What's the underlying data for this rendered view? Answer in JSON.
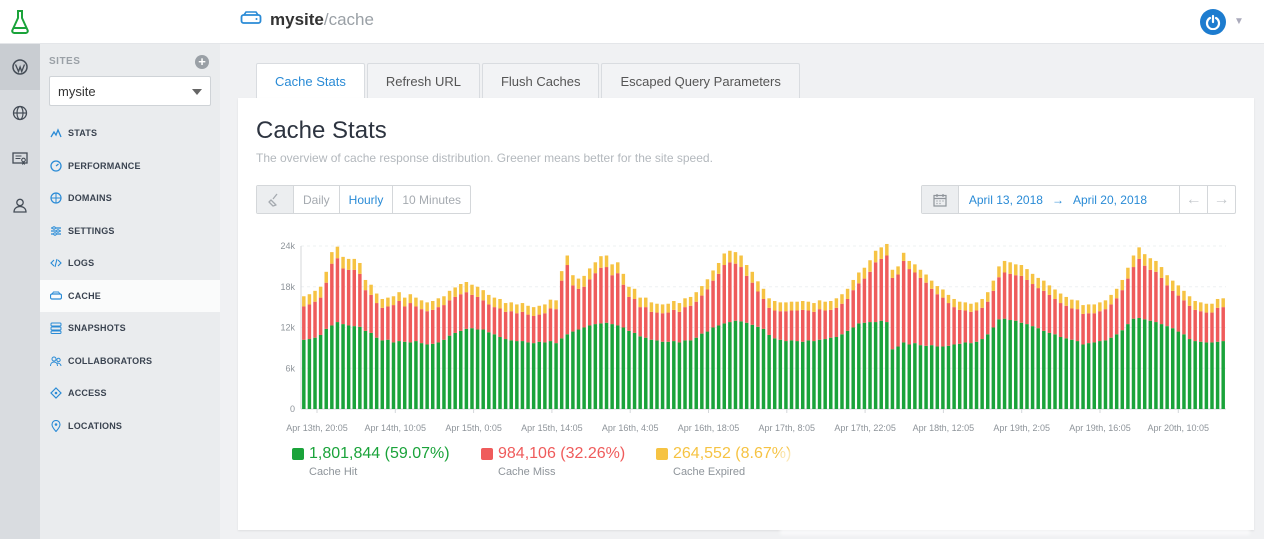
{
  "app": {
    "logo_icon": "flask-icon",
    "site_name": "mysite",
    "site_path": "/cache",
    "site_icon": "drive-icon",
    "power_icon": "power-icon"
  },
  "rail": [
    {
      "icon": "wordpress-icon"
    },
    {
      "icon": "globe-icon"
    },
    {
      "icon": "certificate-icon"
    },
    {
      "icon": "user-icon"
    }
  ],
  "sidebar": {
    "sites_label": "SITES",
    "add_label": "+",
    "selected_site": "mysite",
    "items": [
      {
        "label": "STATS",
        "icon": "stats-icon"
      },
      {
        "label": "PERFORMANCE",
        "icon": "gauge-icon"
      },
      {
        "label": "DOMAINS",
        "icon": "globe-icon"
      },
      {
        "label": "SETTINGS",
        "icon": "settings-icon"
      },
      {
        "label": "LOGS",
        "icon": "code-icon"
      },
      {
        "label": "CACHE",
        "icon": "drive-icon",
        "active": true
      },
      {
        "label": "SNAPSHOTS",
        "icon": "database-icon"
      },
      {
        "label": "COLLABORATORS",
        "icon": "users-icon"
      },
      {
        "label": "ACCESS",
        "icon": "key-icon"
      },
      {
        "label": "LOCATIONS",
        "icon": "pin-icon"
      }
    ]
  },
  "tabs": [
    {
      "label": "Cache Stats",
      "active": true
    },
    {
      "label": "Refresh URL"
    },
    {
      "label": "Flush Caches"
    },
    {
      "label": "Escaped Query Parameters"
    }
  ],
  "card": {
    "title": "Cache Stats",
    "subtitle": "The overview of cache response distribution. Greener means better for the site speed."
  },
  "granularity": {
    "icon": "broom-icon",
    "options": [
      "Daily",
      "Hourly",
      "10 Minutes"
    ],
    "active": "Hourly"
  },
  "date_range": {
    "icon": "calendar-icon",
    "start": "April 13, 2018",
    "arrow": "→",
    "end": "April 20, 2018",
    "prev": "←",
    "next": "→"
  },
  "legend": [
    {
      "value": "1,801,844 (59.07%)",
      "label": "Cache Hit",
      "color": "#1aa33a"
    },
    {
      "value": "984,106 (32.26%)",
      "label": "Cache Miss",
      "color": "#ef5b5b"
    },
    {
      "value": "264,552 (8.67%)",
      "label": "Cache Expired",
      "color": "#f6c343"
    }
  ],
  "chart_data": {
    "type": "bar",
    "stacked": true,
    "ylim": [
      0,
      24000
    ],
    "ytick_labels": [
      "0",
      "6k",
      "12k",
      "18k",
      "24k"
    ],
    "yticks": [
      0,
      6000,
      12000,
      18000,
      24000
    ],
    "xtick_labels": [
      "Apr 13th, 20:05",
      "Apr 14th, 10:05",
      "Apr 15th, 0:05",
      "Apr 15th, 14:05",
      "Apr 16th, 4:05",
      "Apr 16th, 18:05",
      "Apr 17th, 8:05",
      "Apr 17th, 22:05",
      "Apr 18th, 12:05",
      "Apr 19th, 2:05",
      "Apr 19th, 16:05",
      "Apr 20th, 10:05"
    ],
    "grid": true,
    "series": [
      {
        "name": "Cache Hit",
        "color": "#1aa33a",
        "values": [
          10200,
          10300,
          10500,
          10900,
          11800,
          12300,
          12800,
          12500,
          12300,
          12200,
          12100,
          11500,
          11200,
          10500,
          10100,
          10200,
          9800,
          10000,
          9900,
          9800,
          10000,
          9700,
          9500,
          9600,
          9800,
          10200,
          10800,
          11200,
          11500,
          11800,
          11900,
          11700,
          11700,
          11300,
          11000,
          10600,
          10300,
          10100,
          10000,
          10000,
          9800,
          9700,
          9900,
          9800,
          10000,
          9700,
          10400,
          11000,
          11400,
          11700,
          12000,
          12300,
          12500,
          12600,
          12700,
          12500,
          12300,
          12000,
          11500,
          11200,
          10700,
          10500,
          10200,
          10100,
          9900,
          9900,
          10000,
          9800,
          10100,
          10100,
          10500,
          11100,
          11400,
          12000,
          12300,
          12600,
          12800,
          13000,
          12900,
          12700,
          12400,
          12100,
          11800,
          10900,
          10400,
          10200,
          10000,
          10100,
          10000,
          9900,
          10100,
          10000,
          10200,
          10300,
          10500,
          10600,
          11000,
          11500,
          12000,
          12600,
          12700,
          12800,
          12800,
          13000,
          12800,
          8800,
          9200,
          9800,
          9500,
          9700,
          9400,
          9300,
          9400,
          9200,
          9200,
          9300,
          9500,
          9600,
          9800,
          9700,
          9900,
          10300,
          11000,
          12000,
          13200,
          13300,
          13100,
          13000,
          12700,
          12500,
          12200,
          11900,
          11500,
          11200,
          11000,
          10600,
          10400,
          10200,
          10000,
          9500,
          9700,
          9800,
          10000,
          10100,
          10500,
          11000,
          11600,
          12500,
          13300,
          13400,
          13200,
          13000,
          12800,
          12500,
          12200,
          11900,
          11400,
          11000,
          10300,
          10000,
          9900,
          9800,
          9800,
          9900,
          10000
        ]
      },
      {
        "name": "Cache Miss",
        "color": "#ef5b5b",
        "values": [
          4900,
          5100,
          5300,
          5500,
          6800,
          9100,
          9400,
          8200,
          8200,
          8300,
          7800,
          6000,
          5600,
          5100,
          4800,
          4900,
          5500,
          5900,
          5200,
          5800,
          5100,
          5000,
          4900,
          5000,
          5200,
          5100,
          5200,
          5300,
          5400,
          5400,
          4900,
          4800,
          4300,
          4100,
          4000,
          4200,
          4000,
          4300,
          4100,
          4300,
          4100,
          4000,
          4000,
          4300,
          4800,
          5000,
          8500,
          10200,
          6800,
          6000,
          6000,
          6800,
          7500,
          8200,
          8200,
          7200,
          7700,
          6300,
          5000,
          5000,
          4300,
          4500,
          4100,
          4100,
          4200,
          4300,
          4600,
          4500,
          4900,
          5100,
          5300,
          5600,
          6200,
          6900,
          7600,
          8600,
          8800,
          8400,
          8000,
          6900,
          6200,
          5200,
          4400,
          4000,
          4100,
          4200,
          4400,
          4400,
          4500,
          4700,
          4400,
          4300,
          4500,
          4200,
          4100,
          4300,
          4500,
          4700,
          5500,
          5900,
          6500,
          7400,
          8800,
          9100,
          9800,
          10500,
          10600,
          12000,
          11100,
          10400,
          9900,
          9300,
          8300,
          7700,
          7200,
          6300,
          5500,
          5000,
          4700,
          4600,
          4600,
          4600,
          4800,
          5400,
          6200,
          6800,
          6800,
          6700,
          6900,
          6500,
          6200,
          5900,
          5900,
          5600,
          5200,
          5000,
          4800,
          4600,
          4700,
          4500,
          4400,
          4300,
          4400,
          4600,
          4900,
          5300,
          5900,
          6700,
          7600,
          8700,
          7900,
          7500,
          7400,
          6800,
          6000,
          5500,
          5300,
          5000,
          4900,
          4600,
          4500,
          4400,
          4400,
          5000,
          5000
        ]
      },
      {
        "name": "Cache Expired",
        "color": "#f6c343",
        "values": [
          1500,
          1500,
          1600,
          1600,
          1600,
          1700,
          1700,
          1700,
          1600,
          1600,
          1600,
          1500,
          1500,
          1400,
          1300,
          1300,
          1300,
          1300,
          1300,
          1300,
          1300,
          1300,
          1300,
          1300,
          1300,
          1300,
          1400,
          1400,
          1500,
          1500,
          1500,
          1500,
          1500,
          1400,
          1400,
          1400,
          1300,
          1300,
          1300,
          1300,
          1300,
          1300,
          1300,
          1300,
          1300,
          1300,
          1400,
          1400,
          1500,
          1500,
          1600,
          1600,
          1600,
          1700,
          1700,
          1600,
          1600,
          1600,
          1500,
          1500,
          1400,
          1400,
          1400,
          1300,
          1300,
          1300,
          1300,
          1300,
          1300,
          1300,
          1400,
          1400,
          1500,
          1500,
          1600,
          1700,
          1700,
          1700,
          1700,
          1600,
          1600,
          1500,
          1500,
          1400,
          1400,
          1300,
          1300,
          1300,
          1300,
          1300,
          1300,
          1300,
          1300,
          1300,
          1300,
          1400,
          1400,
          1500,
          1500,
          1600,
          1600,
          1700,
          1700,
          1700,
          1700,
          1200,
          1200,
          1200,
          1200,
          1200,
          1200,
          1200,
          1200,
          1200,
          1200,
          1200,
          1200,
          1200,
          1200,
          1200,
          1200,
          1300,
          1400,
          1500,
          1600,
          1700,
          1700,
          1600,
          1600,
          1600,
          1500,
          1500,
          1500,
          1400,
          1400,
          1400,
          1300,
          1300,
          1300,
          1300,
          1300,
          1300,
          1300,
          1300,
          1400,
          1400,
          1500,
          1600,
          1700,
          1700,
          1700,
          1700,
          1600,
          1600,
          1500,
          1500,
          1500,
          1400,
          1400,
          1300,
          1300,
          1300,
          1300,
          1300,
          1300
        ]
      }
    ]
  }
}
